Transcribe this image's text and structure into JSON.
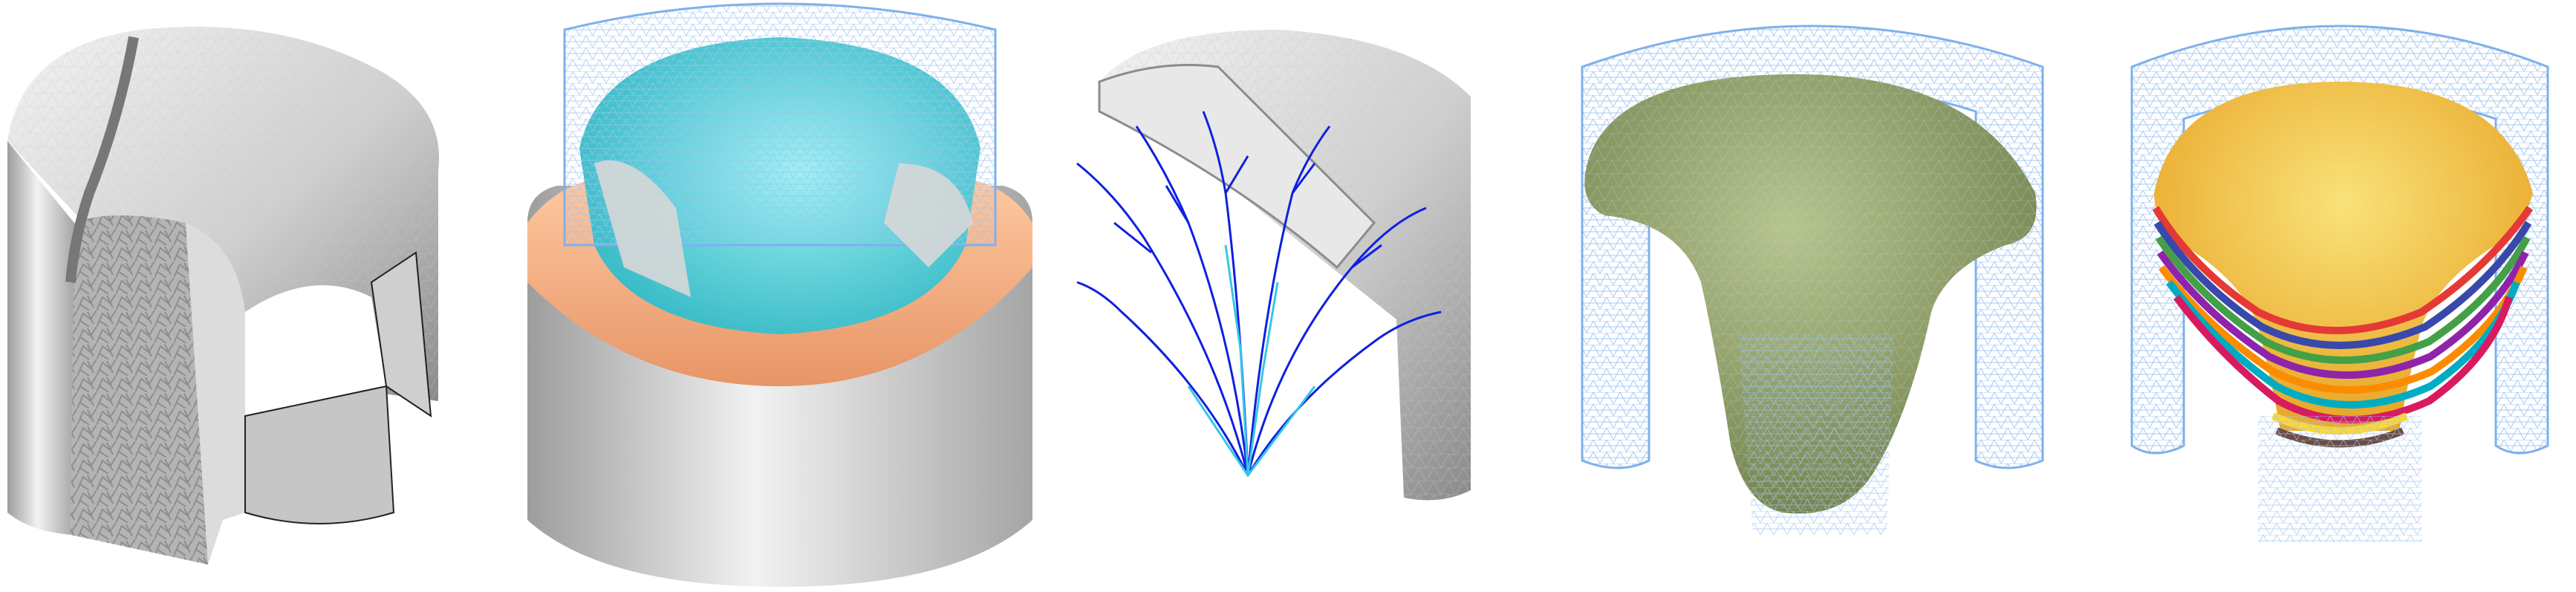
{
  "figure": {
    "panels": [
      {
        "label": "",
        "subject": "solid-dome-mesh"
      },
      {
        "label": "",
        "subject": "layered-dome-regions"
      },
      {
        "label": "",
        "subject": "support-tree"
      },
      {
        "label": "",
        "subject": "organic-volume"
      },
      {
        "label": "",
        "subject": "colored-layers"
      }
    ]
  },
  "colors": {
    "gray_light": "#e6e6e6",
    "gray_mid": "#b9b9b9",
    "gray_dark": "#7d7d7d",
    "wire_blue": "#9cc3f2",
    "cyan": "#4fd0d8",
    "peach": "#f3b087",
    "tree_blue": "#1020e0",
    "tree_cyan": "#35c7e8",
    "olive": "#8a9a63",
    "gold": "#f0c23a"
  }
}
